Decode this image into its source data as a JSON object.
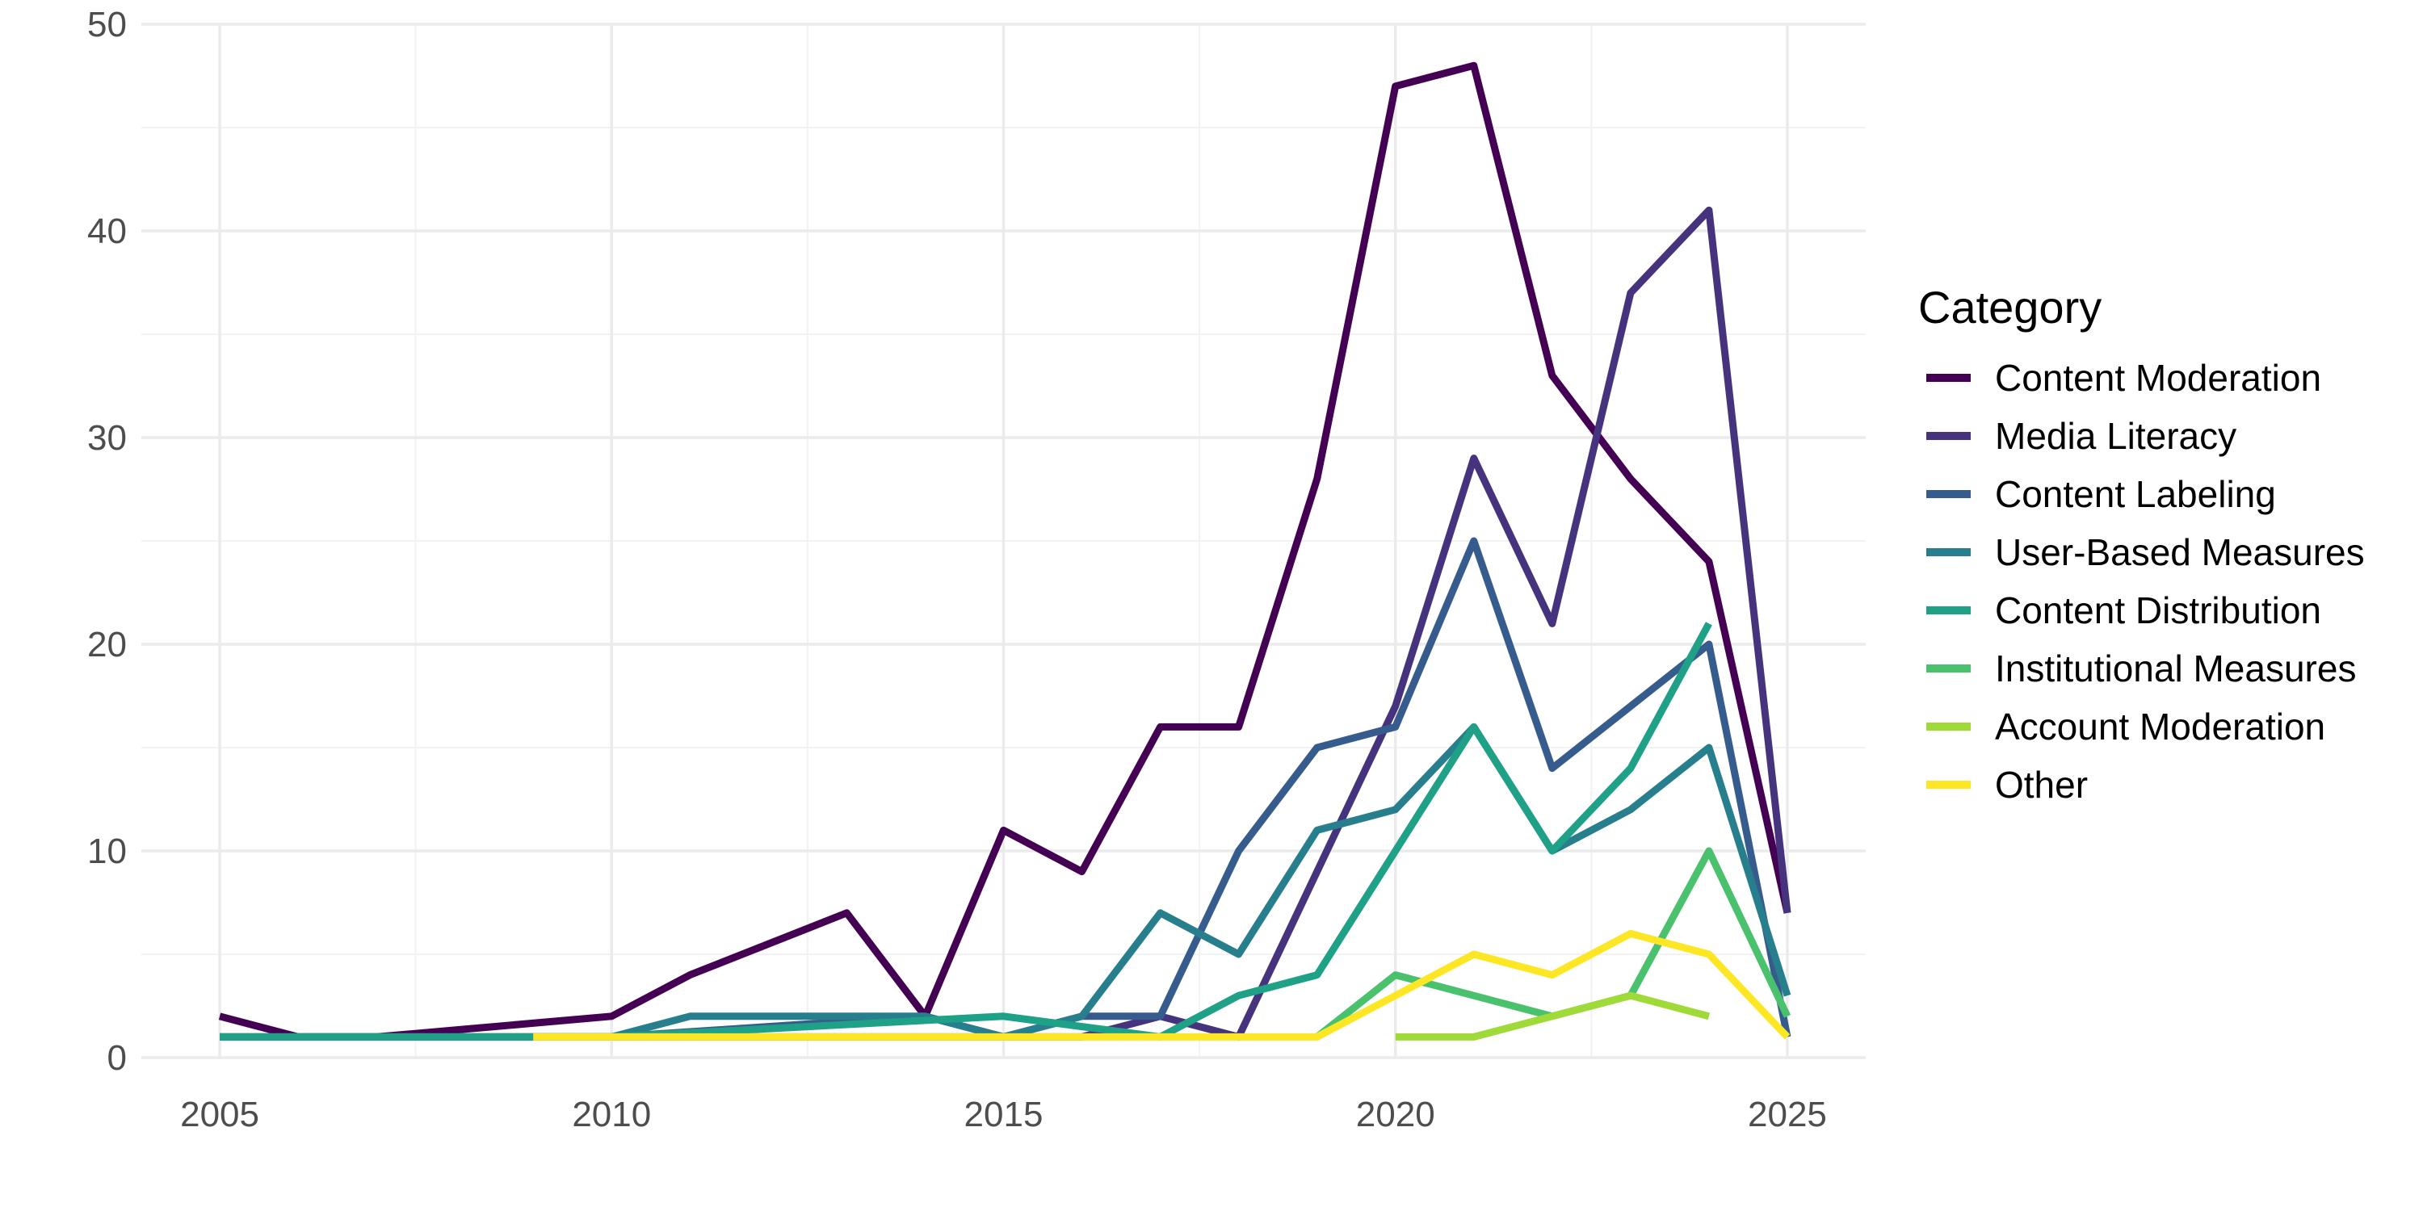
{
  "chart_data": {
    "type": "line",
    "title": "",
    "xlabel": "",
    "ylabel": "",
    "xlim": [
      2004,
      2026
    ],
    "ylim": [
      0,
      50
    ],
    "x_ticks": [
      2005,
      2010,
      2015,
      2020,
      2025
    ],
    "y_ticks": [
      0,
      10,
      20,
      30,
      40,
      50
    ],
    "grid": true,
    "legend_title": "Category",
    "legend_position": "right",
    "series": [
      {
        "name": "Content Moderation",
        "color": "#440154",
        "x": [
          2005,
          2006,
          2007,
          2010,
          2011,
          2013,
          2014,
          2015,
          2016,
          2017,
          2018,
          2019,
          2020,
          2021,
          2022,
          2023,
          2024,
          2025
        ],
        "y": [
          2,
          1,
          1,
          2,
          4,
          7,
          2,
          11,
          9,
          16,
          16,
          28,
          47,
          48,
          33,
          28,
          24,
          7
        ]
      },
      {
        "name": "Media Literacy",
        "color": "#46337E",
        "x": [
          2005,
          2010,
          2015,
          2016,
          2017,
          2018,
          2019,
          2020,
          2021,
          2022,
          2023,
          2024,
          2025
        ],
        "y": [
          1,
          1,
          1,
          1,
          2,
          1,
          9,
          17,
          29,
          21,
          37,
          41,
          7
        ]
      },
      {
        "name": "Content Labeling",
        "color": "#365C8D",
        "x": [
          2005,
          2010,
          2014,
          2015,
          2016,
          2017,
          2018,
          2019,
          2020,
          2021,
          2022,
          2023,
          2024,
          2025
        ],
        "y": [
          1,
          1,
          2,
          1,
          2,
          2,
          10,
          15,
          16,
          25,
          14,
          17,
          20,
          1
        ]
      },
      {
        "name": "User-Based Measures",
        "color": "#277F8E",
        "x": [
          2005,
          2010,
          2011,
          2012,
          2013,
          2014,
          2015,
          2016,
          2017,
          2018,
          2019,
          2020,
          2021,
          2022,
          2023,
          2024,
          2025
        ],
        "y": [
          1,
          1,
          2,
          2,
          2,
          2,
          1,
          2,
          7,
          5,
          11,
          12,
          16,
          10,
          12,
          15,
          3
        ]
      },
      {
        "name": "Content Distribution",
        "color": "#1FA187",
        "x": [
          2005,
          2010,
          2015,
          2017,
          2018,
          2019,
          2020,
          2021,
          2022,
          2023,
          2024
        ],
        "y": [
          1,
          1,
          2,
          1,
          3,
          4,
          10,
          16,
          10,
          14,
          21
        ]
      },
      {
        "name": "Institutional Measures",
        "color": "#4AC16D",
        "x": [
          2019,
          2020,
          2022,
          2023,
          2024,
          2025
        ],
        "y": [
          1,
          4,
          2,
          3,
          10,
          2
        ]
      },
      {
        "name": "Account Moderation",
        "color": "#A0DA39",
        "x": [
          2020,
          2021,
          2022,
          2023,
          2024
        ],
        "y": [
          1,
          1,
          2,
          3,
          2
        ]
      },
      {
        "name": "Other",
        "color": "#FDE725",
        "x": [
          2009,
          2019,
          2020,
          2021,
          2022,
          2023,
          2024,
          2025
        ],
        "y": [
          1,
          1,
          3,
          5,
          4,
          6,
          5,
          1
        ]
      }
    ]
  }
}
